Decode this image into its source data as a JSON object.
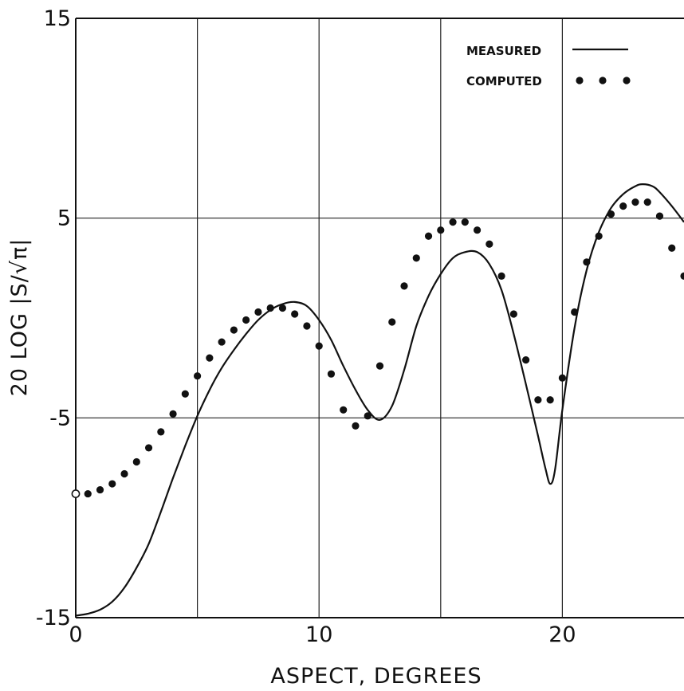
{
  "chart_data": {
    "type": "line",
    "xlabel": "ASPECT, DEGREES",
    "ylabel": "20 LOG |S/√π|",
    "xlim": [
      0,
      25
    ],
    "ylim": [
      -15,
      15
    ],
    "x_ticks": [
      0,
      10,
      20
    ],
    "y_ticks": [
      -15,
      -5,
      5,
      15
    ],
    "x_gridlines": [
      5,
      10,
      15,
      20
    ],
    "y_gridlines": [
      -5,
      5
    ],
    "grid": true,
    "legend_position": "top-right",
    "series": [
      {
        "name": "MEASURED",
        "style": "line",
        "color": "#111111",
        "x": [
          0,
          0.5,
          1,
          1.5,
          2,
          2.5,
          3,
          3.5,
          4,
          4.5,
          5,
          5.5,
          6,
          6.5,
          7,
          7.5,
          8,
          8.5,
          9,
          9.5,
          10,
          10.5,
          11,
          11.5,
          12,
          12.5,
          13,
          13.5,
          14,
          14.5,
          15,
          15.5,
          16,
          16.5,
          17,
          17.5,
          18,
          18.5,
          19,
          19.3,
          19.5,
          19.7,
          20,
          20.5,
          21,
          21.5,
          22,
          22.5,
          23,
          23.3,
          23.7,
          24,
          24.5,
          25
        ],
        "y": [
          -14.9,
          -14.8,
          -14.6,
          -14.2,
          -13.5,
          -12.5,
          -11.3,
          -9.7,
          -8,
          -6.4,
          -4.9,
          -3.6,
          -2.5,
          -1.6,
          -0.8,
          -0.1,
          0.4,
          0.7,
          0.8,
          0.6,
          -0.1,
          -1.1,
          -2.4,
          -3.6,
          -4.6,
          -5.1,
          -4.4,
          -2.6,
          -0.4,
          1.1,
          2.2,
          3,
          3.3,
          3.3,
          2.7,
          1.4,
          -0.8,
          -3.3,
          -5.9,
          -7.5,
          -8.3,
          -7.6,
          -4.6,
          -0.5,
          2.4,
          4.3,
          5.5,
          6.2,
          6.6,
          6.7,
          6.6,
          6.3,
          5.6,
          4.8
        ]
      },
      {
        "name": "COMPUTED",
        "style": "dots",
        "color": "#111111",
        "x": [
          0,
          0.5,
          1,
          1.5,
          2,
          2.5,
          3,
          3.5,
          4,
          4.5,
          5,
          5.5,
          6,
          6.5,
          7,
          7.5,
          8,
          8.5,
          9,
          9.5,
          10,
          10.5,
          11,
          11.5,
          12,
          12.5,
          13,
          13.5,
          14,
          14.5,
          15,
          15.5,
          16,
          16.5,
          17,
          17.5,
          18,
          18.5,
          19,
          19.5,
          20,
          20.5,
          21,
          21.5,
          22,
          22.5,
          23,
          23.5,
          24,
          24.5,
          25
        ],
        "y": [
          -8.8,
          -8.8,
          -8.6,
          -8.3,
          -7.8,
          -7.2,
          -6.5,
          -5.7,
          -4.8,
          -3.8,
          -2.9,
          -2,
          -1.2,
          -0.6,
          -0.1,
          0.3,
          0.5,
          0.5,
          0.2,
          -0.4,
          -1.4,
          -2.8,
          -4.6,
          -5.4,
          -4.9,
          -2.4,
          -0.2,
          1.6,
          3,
          4.1,
          4.4,
          4.8,
          4.8,
          4.4,
          3.7,
          2.1,
          0.2,
          -2.1,
          -4.1,
          -4.1,
          -3,
          0.3,
          2.8,
          4.1,
          5.2,
          5.6,
          5.8,
          5.8,
          5.1,
          3.5,
          2.1
        ]
      }
    ]
  }
}
